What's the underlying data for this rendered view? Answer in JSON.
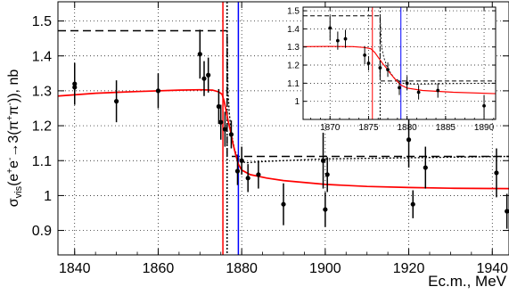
{
  "chart_data": [
    {
      "type": "scatter",
      "title": "",
      "xlabel": "Ec.m., MeV",
      "ylabel_parts": [
        "σ",
        "vis",
        "(e",
        "+",
        "e",
        "-",
        "→3(π",
        "+",
        "π",
        "-",
        ")), nb"
      ],
      "xlim": [
        1836,
        1944
      ],
      "ylim": [
        0.83,
        1.555
      ],
      "xticks": [
        1840,
        1860,
        1880,
        1900,
        1920,
        1940
      ],
      "yticks": [
        0.9,
        1.0,
        1.1,
        1.2,
        1.3,
        1.4,
        1.5
      ],
      "ytick_labels": [
        "0.9",
        "1",
        "1.1",
        "1.2",
        "1.3",
        "1.4",
        "1.5"
      ],
      "grid": true,
      "points": [
        {
          "x": 1840,
          "y": 1.32,
          "err": 0.06
        },
        {
          "x": 1840,
          "y": 1.31,
          "err": 0.05
        },
        {
          "x": 1850,
          "y": 1.27,
          "err": 0.06
        },
        {
          "x": 1860,
          "y": 1.3,
          "err": 0.05
        },
        {
          "x": 1870,
          "y": 1.405,
          "err": 0.07
        },
        {
          "x": 1871,
          "y": 1.335,
          "err": 0.05
        },
        {
          "x": 1872,
          "y": 1.345,
          "err": 0.05
        },
        {
          "x": 1874.5,
          "y": 1.255,
          "err": 0.05
        },
        {
          "x": 1875,
          "y": 1.21,
          "err": 0.05
        },
        {
          "x": 1876,
          "y": 1.19,
          "err": 0.05
        },
        {
          "x": 1877.5,
          "y": 1.175,
          "err": 0.04
        },
        {
          "x": 1879,
          "y": 1.07,
          "err": 0.04
        },
        {
          "x": 1880,
          "y": 1.1,
          "err": 0.04
        },
        {
          "x": 1881.5,
          "y": 1.05,
          "err": 0.04
        },
        {
          "x": 1884,
          "y": 1.06,
          "err": 0.04
        },
        {
          "x": 1890,
          "y": 0.975,
          "err": 0.06
        },
        {
          "x": 1899.5,
          "y": 1.1,
          "err": 0.08
        },
        {
          "x": 1900,
          "y": 0.96,
          "err": 0.05
        },
        {
          "x": 1900.5,
          "y": 1.06,
          "err": 0.05
        },
        {
          "x": 1920,
          "y": 1.16,
          "err": 0.08
        },
        {
          "x": 1921,
          "y": 0.975,
          "err": 0.04
        },
        {
          "x": 1924,
          "y": 1.08,
          "err": 0.06
        },
        {
          "x": 1941,
          "y": 1.065,
          "err": 0.07
        },
        {
          "x": 1943.5,
          "y": 0.955,
          "err": 0.05
        }
      ],
      "fit_curve_color": "#ff0000",
      "fit_curve": [
        [
          1836,
          1.285
        ],
        [
          1845,
          1.293
        ],
        [
          1855,
          1.298
        ],
        [
          1865,
          1.302
        ],
        [
          1870,
          1.303
        ],
        [
          1873,
          1.302
        ],
        [
          1874.5,
          1.297
        ],
        [
          1875.3,
          1.29
        ],
        [
          1875.8,
          1.27
        ],
        [
          1876.3,
          1.24
        ],
        [
          1876.8,
          1.21
        ],
        [
          1877.3,
          1.185
        ],
        [
          1877.8,
          1.155
        ],
        [
          1878.5,
          1.12
        ],
        [
          1879.2,
          1.09
        ],
        [
          1880,
          1.073
        ],
        [
          1882,
          1.06
        ],
        [
          1886,
          1.05
        ],
        [
          1890,
          1.043
        ],
        [
          1900,
          1.032
        ],
        [
          1910,
          1.026
        ],
        [
          1920,
          1.023
        ],
        [
          1930,
          1.021
        ],
        [
          1944,
          1.02
        ]
      ],
      "dashed_step": [
        [
          1836,
          1.472
        ],
        [
          1876.5,
          1.472
        ],
        [
          1876.5,
          1.112
        ],
        [
          1944,
          1.112
        ]
      ],
      "dotted_curve": [
        [
          1876.5,
          1.472
        ],
        [
          1876.7,
          1.3
        ],
        [
          1877.0,
          1.24
        ],
        [
          1877.5,
          1.18
        ],
        [
          1878.3,
          1.13
        ],
        [
          1879.5,
          1.1
        ],
        [
          1881,
          1.094
        ],
        [
          1886,
          1.098
        ],
        [
          1900,
          1.105
        ],
        [
          1944,
          1.112
        ]
      ],
      "vlines": [
        {
          "x": 1875.5,
          "color": "#ff0000"
        },
        {
          "x": 1876.5,
          "color": "#000000",
          "style": "dashed"
        },
        {
          "x": 1879.2,
          "color": "#0000ff"
        }
      ]
    },
    {
      "type": "scatter",
      "title": "inset",
      "xlim": [
        1866.5,
        1891.5
      ],
      "ylim": [
        0.9,
        1.52
      ],
      "xticks": [
        1870,
        1875,
        1880,
        1885,
        1890
      ],
      "yticks": [
        1.0,
        1.1,
        1.2,
        1.3,
        1.4,
        1.5
      ],
      "ytick_labels": [
        "1",
        "1.1",
        "1.2",
        "1.3",
        "1.4",
        "1.5"
      ],
      "grid": true,
      "points": [
        {
          "x": 1870,
          "y": 1.405,
          "err": 0.07
        },
        {
          "x": 1871,
          "y": 1.335,
          "err": 0.05
        },
        {
          "x": 1872,
          "y": 1.345,
          "err": 0.05
        },
        {
          "x": 1874.5,
          "y": 1.255,
          "err": 0.05
        },
        {
          "x": 1875,
          "y": 1.21,
          "err": 0.04
        },
        {
          "x": 1876.5,
          "y": 1.185,
          "err": 0.04
        },
        {
          "x": 1877.5,
          "y": 1.175,
          "err": 0.04
        },
        {
          "x": 1879,
          "y": 1.075,
          "err": 0.04
        },
        {
          "x": 1880,
          "y": 1.1,
          "err": 0.04
        },
        {
          "x": 1881.5,
          "y": 1.05,
          "err": 0.04
        },
        {
          "x": 1884,
          "y": 1.06,
          "err": 0.04
        },
        {
          "x": 1890,
          "y": 0.975,
          "err": 0.06
        }
      ],
      "fit_curve_color": "#ff0000",
      "fit_curve": [
        [
          1866.5,
          1.302
        ],
        [
          1870,
          1.303
        ],
        [
          1873,
          1.302
        ],
        [
          1874.5,
          1.297
        ],
        [
          1875.3,
          1.29
        ],
        [
          1875.8,
          1.27
        ],
        [
          1876.3,
          1.24
        ],
        [
          1876.8,
          1.21
        ],
        [
          1877.3,
          1.185
        ],
        [
          1877.8,
          1.155
        ],
        [
          1878.5,
          1.12
        ],
        [
          1879.2,
          1.09
        ],
        [
          1880,
          1.073
        ],
        [
          1882,
          1.06
        ],
        [
          1886,
          1.05
        ],
        [
          1891.5,
          1.042
        ]
      ],
      "dashed_step": [
        [
          1866.5,
          1.472
        ],
        [
          1876.5,
          1.472
        ],
        [
          1876.5,
          1.112
        ],
        [
          1891.5,
          1.112
        ]
      ],
      "dotted_curve": [
        [
          1876.5,
          1.472
        ],
        [
          1876.7,
          1.3
        ],
        [
          1877.0,
          1.24
        ],
        [
          1877.5,
          1.18
        ],
        [
          1878.3,
          1.13
        ],
        [
          1879.5,
          1.1
        ],
        [
          1881,
          1.094
        ],
        [
          1886,
          1.098
        ],
        [
          1891.5,
          1.1
        ]
      ],
      "vlines": [
        {
          "x": 1875.5,
          "color": "#ff0000"
        },
        {
          "x": 1876.5,
          "color": "#000000",
          "style": "dashed"
        },
        {
          "x": 1879.2,
          "color": "#0000ff"
        }
      ]
    }
  ]
}
